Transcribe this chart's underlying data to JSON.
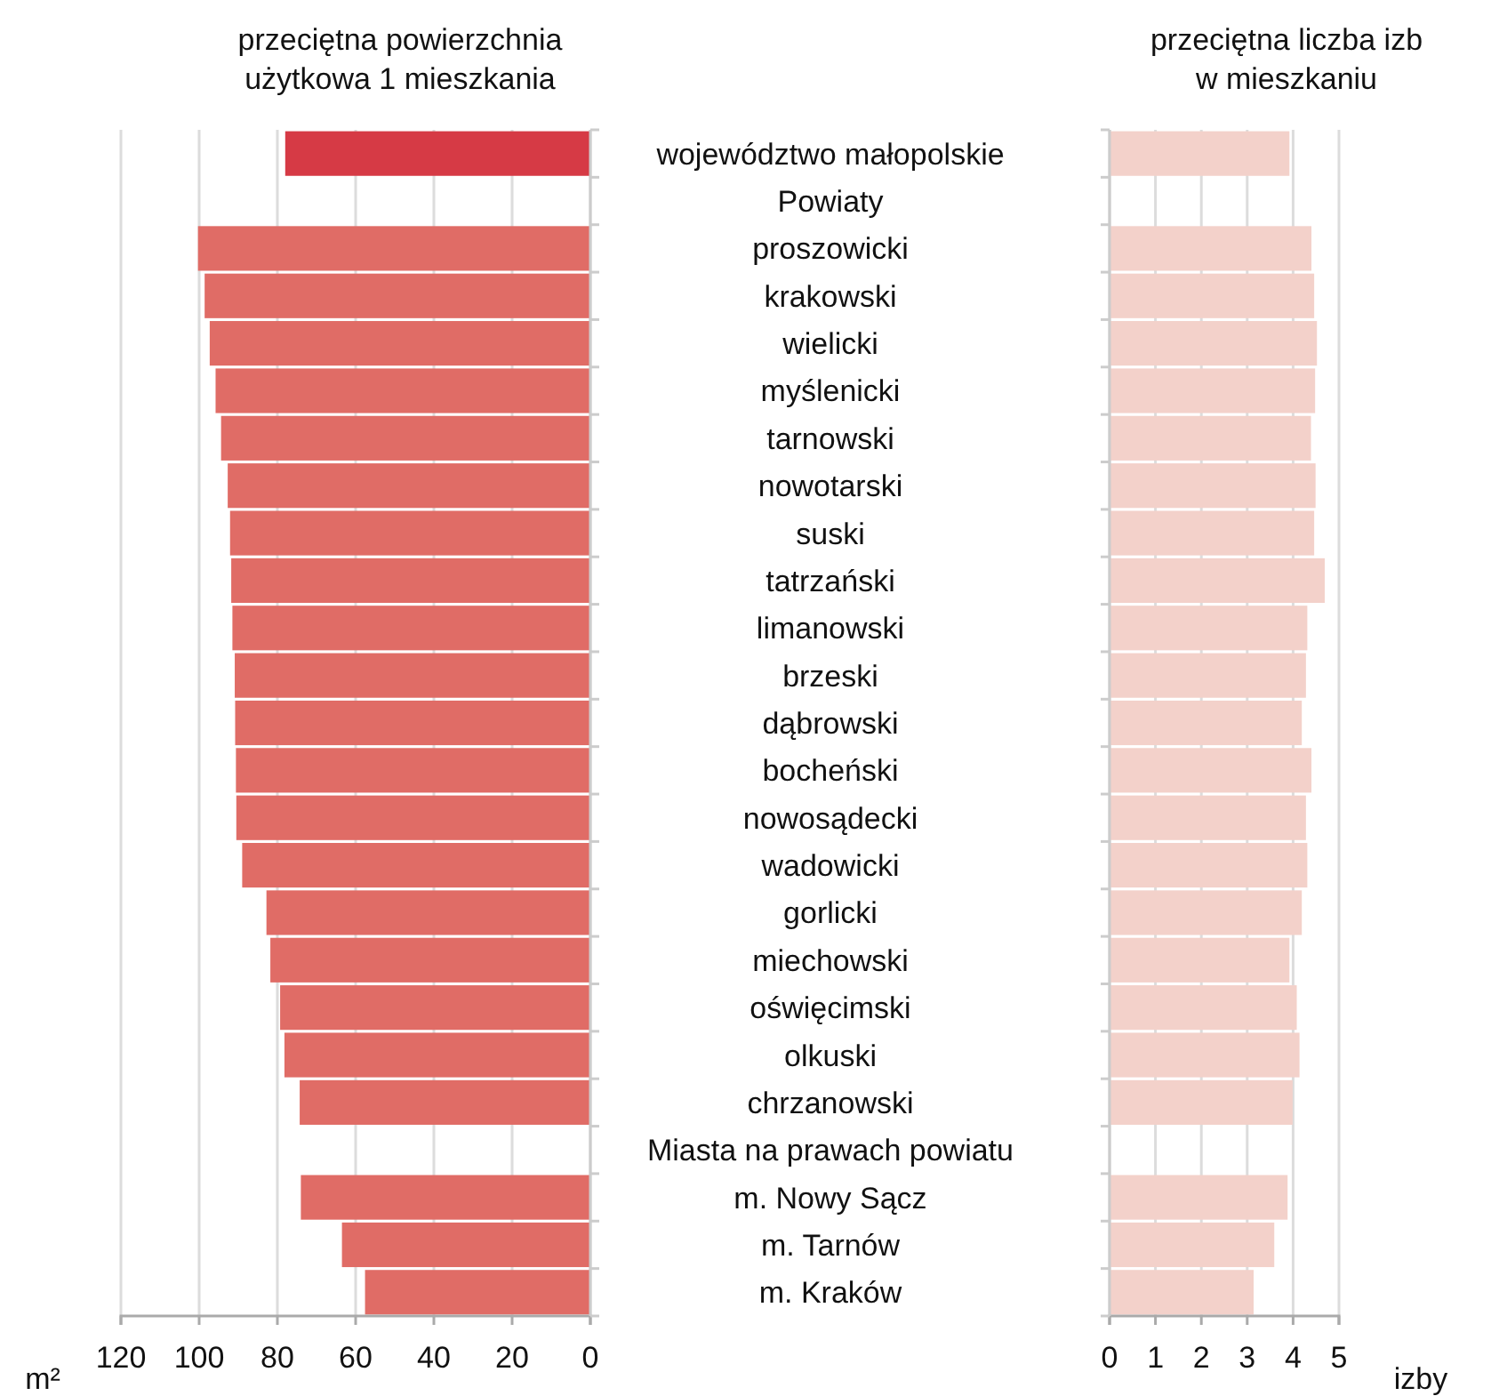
{
  "chart_data": [
    {
      "type": "bar",
      "orientation": "horizontal",
      "title": "przeciętna powierzchnia\nużytkowa 1 mieszkania",
      "xlabel": "m²",
      "categories": [
        "województwo małopolskie",
        "Powiaty",
        "proszowicki",
        "krakowski",
        "wielicki",
        "myślenicki",
        "tarnowski",
        "nowotarski",
        "suski",
        "tatrzański",
        "limanowski",
        "brzeski",
        "dąbrowski",
        "bocheński",
        "nowosądecki",
        "wadowicki",
        "gorlicki",
        "miechowski",
        "oświęcimski",
        "olkuski",
        "chrzanowski",
        "Miasta na prawach powiatu",
        "m. Nowy Sącz",
        "m. Tarnów",
        "m. Kraków"
      ],
      "values": [
        78.0,
        null,
        100.3,
        98.6,
        97.3,
        95.8,
        94.4,
        92.7,
        92.1,
        91.8,
        91.5,
        90.9,
        90.8,
        90.6,
        90.5,
        89.0,
        82.8,
        81.8,
        79.3,
        78.2,
        74.3,
        null,
        74.0,
        63.5,
        57.6
      ],
      "colors": [
        "#d63a45",
        null,
        "#e06c66",
        "#e06c66",
        "#e06c66",
        "#e06c66",
        "#e06c66",
        "#e06c66",
        "#e06c66",
        "#e06c66",
        "#e06c66",
        "#e06c66",
        "#e06c66",
        "#e06c66",
        "#e06c66",
        "#e06c66",
        "#e06c66",
        "#e06c66",
        "#e06c66",
        "#e06c66",
        "#e06c66",
        null,
        "#e06c66",
        "#e06c66",
        "#e06c66"
      ],
      "xlim": [
        120,
        0
      ],
      "xticks": [
        120,
        100,
        80,
        60,
        40,
        20,
        0
      ],
      "grid": "x"
    },
    {
      "type": "bar",
      "orientation": "horizontal",
      "title": "przeciętna liczba izb\nw mieszkaniu",
      "xlabel": "izby",
      "categories": [
        null,
        null,
        null,
        null,
        null,
        null,
        null,
        null,
        null,
        null,
        null,
        null,
        null,
        null,
        null,
        null,
        null,
        null,
        null,
        null,
        null,
        null,
        null,
        null,
        null
      ],
      "values": [
        3.92,
        null,
        4.4,
        4.46,
        4.52,
        4.48,
        4.39,
        4.49,
        4.46,
        4.69,
        4.31,
        4.28,
        4.19,
        4.4,
        4.28,
        4.31,
        4.19,
        3.92,
        4.08,
        4.14,
        3.99,
        null,
        3.88,
        3.59,
        3.14
      ],
      "color": "#f3d1ca",
      "xlim": [
        0,
        5
      ],
      "xticks": [
        0,
        1,
        2,
        3,
        4,
        5
      ],
      "grid": "x"
    }
  ]
}
